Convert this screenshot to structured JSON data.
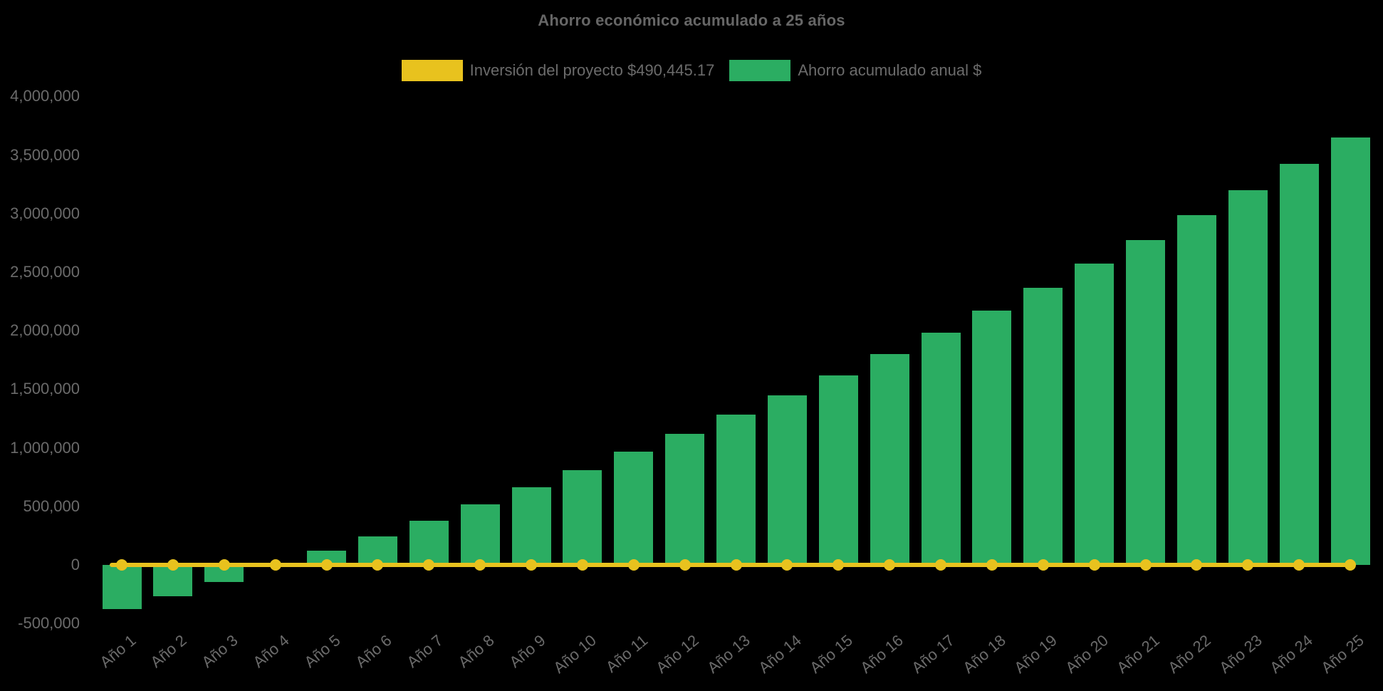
{
  "title": "Ahorro económico acumulado a 25 años",
  "colors": {
    "background": "#000000",
    "text": "#6b6b6b",
    "investment_yellow": "#e8c21e",
    "savings_green": "#2bad62"
  },
  "legend": [
    {
      "label": "Inversión del proyecto $490,445.17",
      "series": "investment",
      "color": "#e8c21e"
    },
    {
      "label": "Ahorro acumulado anual $",
      "series": "savings",
      "color": "#2bad62"
    }
  ],
  "chart_data": {
    "type": "bar",
    "title": "Ahorro económico acumulado a 25 años",
    "categories": [
      "Año 1",
      "Año 2",
      "Año 3",
      "Año 4",
      "Año 5",
      "Año 6",
      "Año 7",
      "Año 8",
      "Año 9",
      "Año 10",
      "Año 11",
      "Año 12",
      "Año 13",
      "Año 14",
      "Año 15",
      "Año 16",
      "Año 17",
      "Año 18",
      "Año 19",
      "Año 20",
      "Año 21",
      "Año 22",
      "Año 23",
      "Año 24",
      "Año 25"
    ],
    "series": [
      {
        "name": "Ahorro acumulado anual $",
        "type": "bar",
        "color": "#2bad62",
        "values": [
          -380000,
          -265000,
          -148000,
          -10000,
          120000,
          245000,
          380000,
          520000,
          665000,
          812000,
          968000,
          1120000,
          1282000,
          1450000,
          1620000,
          1800000,
          1980000,
          2172000,
          2368000,
          2570000,
          2775000,
          2985000,
          3200000,
          3425000,
          3650000
        ]
      },
      {
        "name": "Inversión del proyecto $490,445.17",
        "type": "line",
        "color": "#e8c21e",
        "marker": "circle",
        "note": "flat line with point markers drawn at y = 0 on the value axis",
        "values": [
          0,
          0,
          0,
          0,
          0,
          0,
          0,
          0,
          0,
          0,
          0,
          0,
          0,
          0,
          0,
          0,
          0,
          0,
          0,
          0,
          0,
          0,
          0,
          0,
          0
        ]
      }
    ],
    "xlabel": "",
    "ylabel": "",
    "ylim": [
      -500000,
      4000000
    ],
    "ytick_step": 500000,
    "ytick_values": [
      4000000,
      3500000,
      3000000,
      2500000,
      2000000,
      1500000,
      1000000,
      500000,
      0,
      -500000
    ],
    "ytick_labels": [
      "4,000,000",
      "3,500,000",
      "3,000,000",
      "2,500,000",
      "2,000,000",
      "1,500,000",
      "1,000,000",
      "500,000",
      "0",
      "-500,000"
    ],
    "grid": false,
    "legend_position": "top",
    "x_tick_rotation_deg": -40
  }
}
